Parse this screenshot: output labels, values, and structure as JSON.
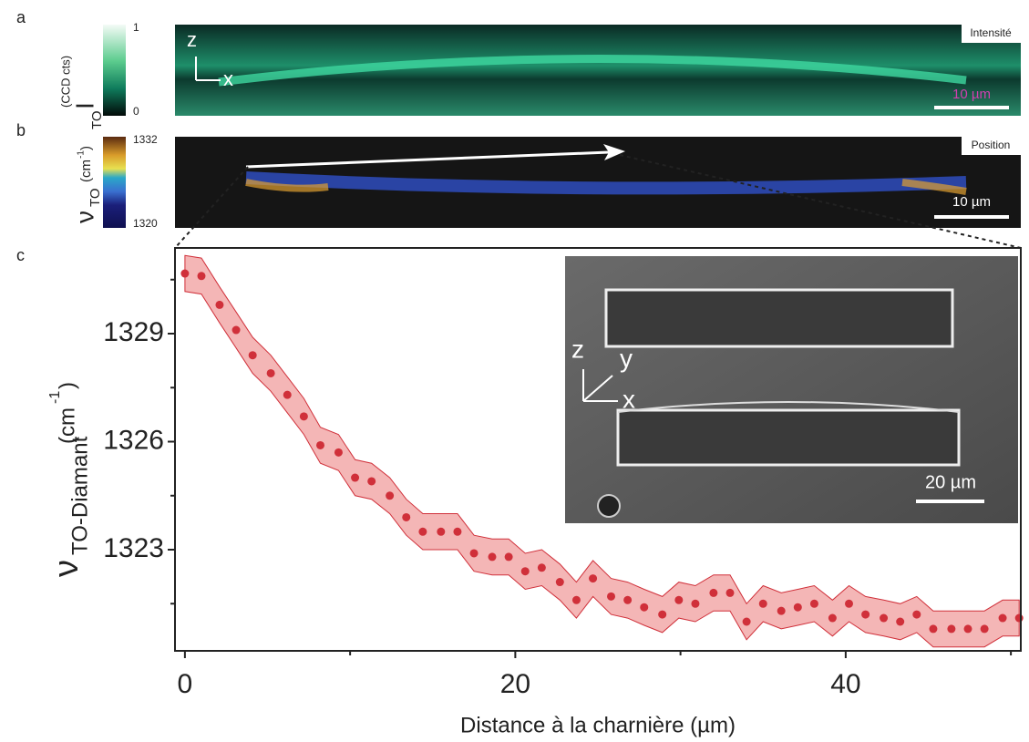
{
  "chart_data": {
    "type": "scatter",
    "panel": "c",
    "x": [
      0,
      1.0,
      2.1,
      3.1,
      4.1,
      5.2,
      6.2,
      7.2,
      8.2,
      9.3,
      10.3,
      11.3,
      12.4,
      13.4,
      14.4,
      15.5,
      16.5,
      17.5,
      18.6,
      19.6,
      20.6,
      21.6,
      22.7,
      23.7,
      24.7,
      25.8,
      26.8,
      27.8,
      28.9,
      29.9,
      30.9,
      32.0,
      33.0,
      34.0,
      35.0,
      36.1,
      37.1,
      38.1,
      39.2,
      40.2,
      41.2,
      42.3,
      43.3,
      44.3,
      45.3,
      46.4,
      47.4,
      48.4,
      49.5,
      50.5
    ],
    "series": [
      {
        "color": "#d0303a",
        "band_color": "#f4b6b6",
        "error": 0.5,
        "values": [
          1330.67,
          1330.6,
          1329.8,
          1329.1,
          1328.4,
          1327.9,
          1327.3,
          1326.7,
          1325.9,
          1325.7,
          1325.0,
          1324.9,
          1324.5,
          1323.9,
          1323.5,
          1323.5,
          1323.5,
          1322.9,
          1322.8,
          1322.8,
          1322.4,
          1322.5,
          1322.1,
          1321.6,
          1322.2,
          1321.7,
          1321.6,
          1321.4,
          1321.2,
          1321.6,
          1321.5,
          1321.8,
          1321.8,
          1321.0,
          1321.5,
          1321.3,
          1321.4,
          1321.5,
          1321.1,
          1321.5,
          1321.2,
          1321.1,
          1321.0,
          1321.2,
          1320.8,
          1320.8,
          1320.8,
          1320.8,
          1321.1,
          1321.1
        ]
      }
    ],
    "xlim": [
      -0.6,
      50.6
    ],
    "ylim": [
      1320.19,
      1331.38
    ],
    "xticks": [
      0,
      20,
      40
    ],
    "xminor": [
      10,
      30,
      50
    ],
    "yticks": [
      1323,
      1326,
      1329
    ],
    "yminor": [
      1321.5,
      1324.5,
      1327.5,
      1330.5
    ],
    "xlabel": "Distance à la charnière (µm)",
    "ylabel": {
      "symbol": "ν",
      "sub": "TO-Diamant",
      "unit_open": "(cm",
      "sup": "-1",
      "unit_close": ")"
    },
    "inset": {
      "z": "z",
      "y": "y",
      "x": "x",
      "scale": "20 µm"
    }
  },
  "panel_a": {
    "label": "a",
    "tag": "Intensité",
    "scale": "10 µm",
    "z": "z",
    "x": "x",
    "colorbar": [
      1,
      0
    ],
    "ylabel": {
      "symbol": "I",
      "sub": "TO",
      "sup": "(CCD cts)"
    }
  },
  "panel_b": {
    "label": "b",
    "tag": "Position",
    "scale": "10 µm",
    "colorbar": [
      1332,
      1320
    ],
    "ylabel": {
      "symbol": "ν",
      "sub": "TO",
      "unit_open": "(cm",
      "sup": "-1",
      "unit_close": ")"
    }
  }
}
